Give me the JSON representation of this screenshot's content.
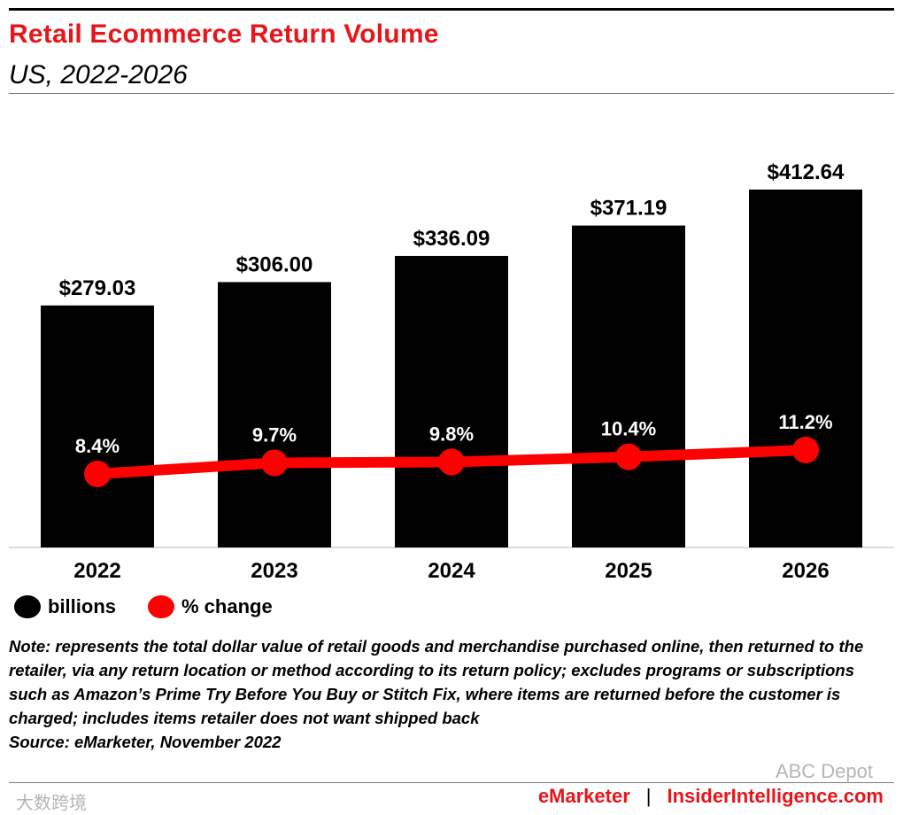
{
  "header": {
    "title": "Retail Ecommerce Return Volume",
    "subtitle": "US, 2022-2026"
  },
  "chart_data": {
    "type": "bar",
    "title": "Retail Ecommerce Return Volume",
    "subtitle": "US, 2022-2026",
    "categories": [
      "2022",
      "2023",
      "2024",
      "2025",
      "2026"
    ],
    "series": [
      {
        "name": "billions",
        "type": "bar",
        "values": [
          279.03,
          306.0,
          336.09,
          371.19,
          412.64
        ],
        "labels": [
          "$279.03",
          "$306.00",
          "$336.09",
          "$371.19",
          "$412.64"
        ],
        "color": "#000000"
      },
      {
        "name": "% change",
        "type": "line",
        "values": [
          8.4,
          9.7,
          9.8,
          10.4,
          11.2
        ],
        "labels": [
          "8.4%",
          "9.7%",
          "9.8%",
          "10.4%",
          "11.2%"
        ],
        "color": "#ff0000"
      }
    ],
    "ylim": [
      0,
      412.64
    ],
    "xlabel": "",
    "ylabel": ""
  },
  "legend": {
    "billions": "billions",
    "pct_change": "% change"
  },
  "note": {
    "text": "Note: represents the total dollar value of retail goods and merchandise purchased online, then returned to the retailer, via any return location or method according to its return policy; excludes programs or subscriptions such as Amazon’s Prime Try Before You Buy or Stitch Fix, where items are returned before the customer is charged; includes items retailer does not want shipped back",
    "source": "Source: eMarketer, November 2022"
  },
  "footer": {
    "emarketer": "eMarketer",
    "separator": "|",
    "insider": "InsiderIntelligence.com"
  },
  "watermarks": {
    "right": "ABC Depot",
    "left": "大数跨境"
  }
}
